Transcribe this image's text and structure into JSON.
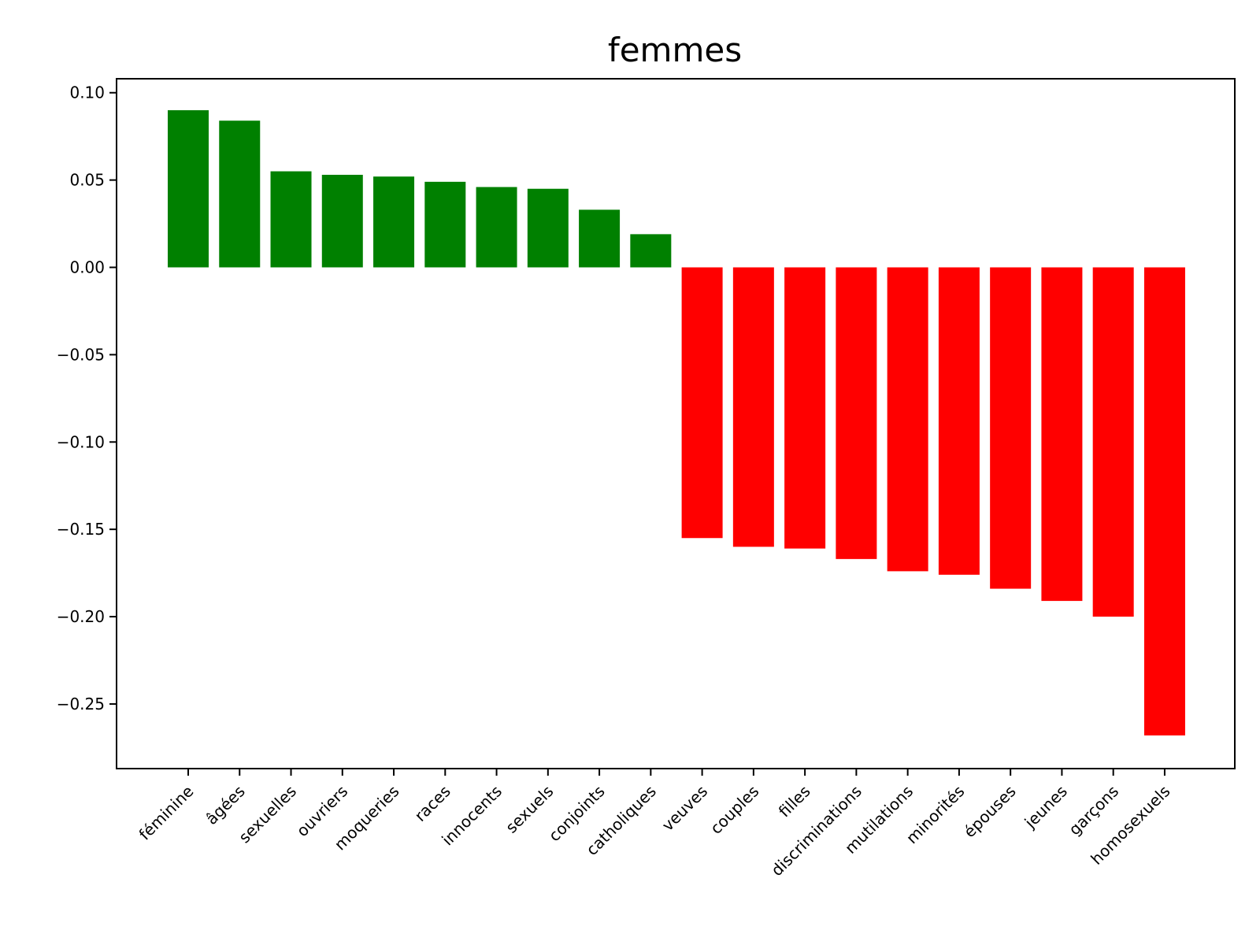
{
  "chart_data": {
    "type": "bar",
    "title": "femmes",
    "xlabel": "",
    "ylabel": "",
    "categories": [
      "féminine",
      "âgées",
      "sexuelles",
      "ouvriers",
      "moqueries",
      "races",
      "innocents",
      "sexuels",
      "conjoints",
      "catholiques",
      "veuves",
      "couples",
      "filles",
      "discriminations",
      "mutilations",
      "minorités",
      "épouses",
      "jeunes",
      "garçons",
      "homosexuels"
    ],
    "values": [
      0.09,
      0.084,
      0.055,
      0.053,
      0.052,
      0.049,
      0.046,
      0.045,
      0.033,
      0.019,
      -0.155,
      -0.16,
      -0.161,
      -0.167,
      -0.174,
      -0.176,
      -0.184,
      -0.191,
      -0.2,
      -0.268
    ],
    "ylim": [
      -0.287,
      0.108
    ],
    "yticks": [
      0.1,
      0.05,
      0.0,
      -0.05,
      -0.1,
      -0.15,
      -0.2,
      -0.25
    ],
    "ytick_labels": [
      "0.10",
      "0.05",
      "0.00",
      "−0.05",
      "−0.10",
      "−0.15",
      "−0.20",
      "−0.25"
    ],
    "colors": {
      "positive": "#008000",
      "negative": "#ff0000"
    },
    "grid": false,
    "legend": "none"
  }
}
